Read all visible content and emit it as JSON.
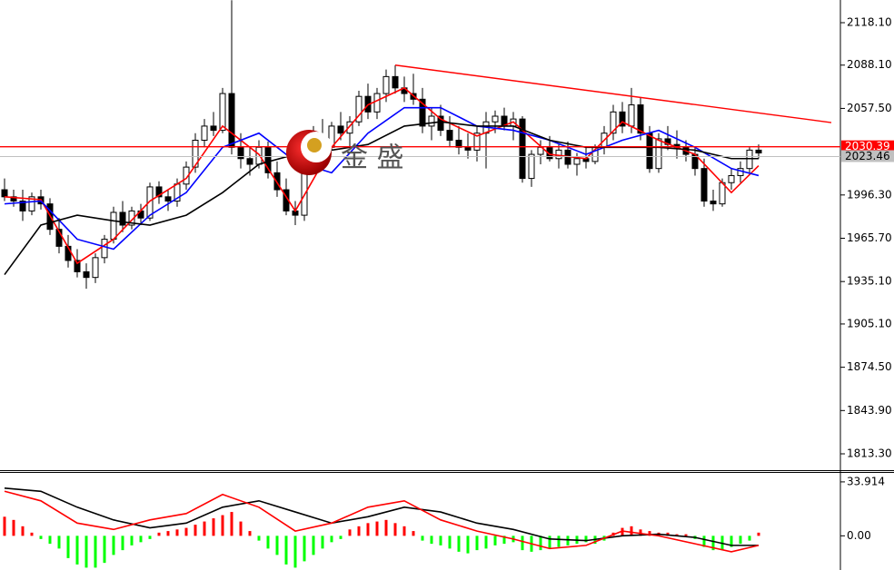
{
  "chart_data": [
    {
      "type": "candlestick",
      "open": [
        2000,
        1995,
        1992,
        1985,
        1995,
        1990,
        1972,
        1960,
        1950,
        1942,
        1938,
        1952,
        1965,
        1984,
        1975,
        1985,
        1980,
        2002,
        1995,
        1992,
        2004,
        2016,
        2035,
        2045,
        2042,
        2068,
        2030,
        2022,
        2018,
        2030,
        2012,
        2000,
        1985,
        1982,
        2030,
        2038,
        2030,
        2045,
        2040,
        2048,
        2066,
        2055,
        2068,
        2080,
        2072,
        2068,
        2064,
        2045,
        2052,
        2042,
        2035,
        2030,
        2028,
        2040,
        2048,
        2052,
        2045,
        2050,
        2008,
        2025,
        2030,
        2022,
        2028,
        2018,
        2022,
        2020,
        2030,
        2040,
        2055,
        2045,
        2060,
        2040,
        2015,
        2036,
        2032,
        2030,
        2025,
        2015,
        1992,
        1990,
        2005,
        2010,
        2015,
        2028
      ],
      "high": [
        2008,
        2000,
        2000,
        1998,
        2000,
        1994,
        1980,
        1968,
        1958,
        1948,
        1955,
        1968,
        1988,
        1992,
        1988,
        1990,
        2005,
        2006,
        2000,
        2008,
        2020,
        2040,
        2050,
        2055,
        2072,
        2134,
        2040,
        2030,
        2035,
        2034,
        2020,
        2008,
        1992,
        2035,
        2045,
        2050,
        2048,
        2055,
        2052,
        2070,
        2075,
        2072,
        2085,
        2088,
        2080,
        2082,
        2072,
        2058,
        2060,
        2052,
        2045,
        2040,
        2045,
        2055,
        2056,
        2058,
        2055,
        2052,
        2028,
        2035,
        2038,
        2032,
        2034,
        2026,
        2030,
        2032,
        2045,
        2060,
        2062,
        2072,
        2065,
        2045,
        2040,
        2045,
        2042,
        2035,
        2030,
        2022,
        2000,
        2008,
        2015,
        2020,
        2030,
        2032
      ],
      "low": [
        1992,
        1988,
        1978,
        1982,
        1986,
        1968,
        1955,
        1945,
        1938,
        1930,
        1934,
        1948,
        1962,
        1970,
        1972,
        1975,
        1978,
        1990,
        1985,
        1988,
        2000,
        2012,
        2030,
        2038,
        2040,
        2025,
        2015,
        2010,
        2015,
        2008,
        1995,
        1982,
        1975,
        1978,
        2020,
        2025,
        2028,
        2035,
        2030,
        2045,
        2050,
        2050,
        2062,
        2068,
        2062,
        2060,
        2040,
        2035,
        2038,
        2030,
        2025,
        2022,
        2020,
        2015,
        2040,
        2042,
        2035,
        2005,
        2002,
        2018,
        2020,
        2015,
        2015,
        2010,
        2015,
        2018,
        2025,
        2035,
        2040,
        2040,
        2035,
        2012,
        2012,
        2028,
        2022,
        2020,
        2010,
        1988,
        1985,
        1988,
        2000,
        2005,
        2012,
        2022
      ],
      "close": [
        1995,
        1992,
        1985,
        1995,
        1990,
        1972,
        1960,
        1950,
        1942,
        1938,
        1952,
        1965,
        1984,
        1975,
        1985,
        1980,
        2002,
        1995,
        1992,
        2004,
        2016,
        2035,
        2045,
        2042,
        2068,
        2030,
        2022,
        2018,
        2030,
        2012,
        2000,
        1985,
        1982,
        2030,
        2038,
        2030,
        2045,
        2040,
        2048,
        2066,
        2055,
        2068,
        2080,
        2072,
        2068,
        2064,
        2045,
        2052,
        2042,
        2035,
        2030,
        2028,
        2040,
        2048,
        2052,
        2045,
        2050,
        2008,
        2025,
        2030,
        2022,
        2028,
        2018,
        2022,
        2020,
        2030,
        2040,
        2055,
        2045,
        2060,
        2040,
        2015,
        2036,
        2032,
        2030,
        2025,
        2015,
        1992,
        1990,
        2005,
        2010,
        2015,
        2028,
        2026
      ],
      "overlays": [
        {
          "color": "#ff0000",
          "x": [
            0,
            4,
            8,
            12,
            16,
            20,
            24,
            28,
            32,
            36,
            40,
            44,
            48,
            52,
            56,
            60,
            64,
            68,
            72,
            76,
            80,
            83
          ],
          "values": [
            1995,
            1993,
            1948,
            1965,
            1992,
            2008,
            2045,
            2025,
            1985,
            2030,
            2060,
            2072,
            2050,
            2038,
            2048,
            2025,
            2022,
            2048,
            2035,
            2025,
            1998,
            2017
          ]
        },
        {
          "color": "#0000ff",
          "x": [
            0,
            4,
            8,
            12,
            16,
            20,
            24,
            28,
            32,
            36,
            40,
            44,
            48,
            52,
            56,
            60,
            64,
            68,
            72,
            76,
            80,
            83
          ],
          "values": [
            1990,
            1992,
            1965,
            1958,
            1982,
            1998,
            2030,
            2040,
            2020,
            2012,
            2040,
            2058,
            2058,
            2045,
            2042,
            2035,
            2025,
            2035,
            2042,
            2030,
            2015,
            2010
          ]
        },
        {
          "color": "#000000",
          "x": [
            0,
            4,
            8,
            12,
            16,
            20,
            24,
            28,
            32,
            36,
            40,
            44,
            48,
            52,
            56,
            60,
            64,
            68,
            72,
            76,
            80,
            83
          ],
          "values": [
            1940,
            1975,
            1982,
            1978,
            1975,
            1982,
            1998,
            2018,
            2025,
            2028,
            2032,
            2045,
            2048,
            2045,
            2045,
            2035,
            2030,
            2030,
            2030,
            2028,
            2022,
            2022
          ]
        }
      ],
      "price_lines": [
        {
          "value": 2030.39,
          "color": "#ff0000"
        },
        {
          "value": 2023.46,
          "color": "#c0c0c0"
        }
      ],
      "trendline": {
        "color": "#ff0000",
        "x": [
          43,
          91
        ],
        "values": [
          2088.1,
          2047.5
        ]
      },
      "watermark": "金 盛",
      "ylim": [
        1801.75,
        2134.14
      ],
      "yticks": [
        {
          "value": 2118.1,
          "label": "2118.10"
        },
        {
          "value": 2088.1,
          "label": "2088.10"
        },
        {
          "value": 2057.5,
          "label": "2057.50"
        },
        {
          "value": 1996.3,
          "label": "1996.30"
        },
        {
          "value": 1965.7,
          "label": "1965.70"
        },
        {
          "value": 1935.1,
          "label": "1935.10"
        },
        {
          "value": 1905.1,
          "label": "1905.10"
        },
        {
          "value": 1874.5,
          "label": "1874.50"
        },
        {
          "value": 1843.9,
          "label": "1843.90"
        },
        {
          "value": 1813.3,
          "label": "1813.30"
        }
      ]
    },
    {
      "type": "macd",
      "values": [
        12,
        10,
        6,
        2,
        -2,
        -5,
        -8,
        -14,
        -18,
        -20,
        -20,
        -17,
        -12,
        -9,
        -6,
        -4,
        -2,
        2,
        3,
        4,
        5,
        7,
        9,
        11,
        13,
        15,
        9,
        3,
        -3,
        -8,
        -12,
        -18,
        -20,
        -16,
        -12,
        -8,
        -4,
        -2,
        4,
        6,
        8,
        9,
        10,
        8,
        6,
        3,
        -3,
        -5,
        -6,
        -8,
        -10,
        -11,
        -9,
        -8,
        -6,
        -5,
        -4,
        -9,
        -10,
        -9,
        -8,
        -7,
        -6,
        -5,
        -4,
        -5,
        -3,
        2,
        5,
        6,
        4,
        3,
        2,
        2,
        1,
        1,
        -2,
        -7,
        -9,
        -9,
        -7,
        -5,
        -3,
        2
      ],
      "positive_color": "#ff0000",
      "negative_color": "#00ff00",
      "series": [
        {
          "color": "#000000",
          "x": [
            0,
            4,
            8,
            12,
            16,
            20,
            24,
            28,
            32,
            36,
            40,
            44,
            48,
            52,
            56,
            60,
            64,
            68,
            72,
            76,
            80,
            83
          ],
          "values": [
            30,
            28,
            18,
            10,
            5,
            8,
            18,
            22,
            15,
            8,
            12,
            18,
            15,
            8,
            4,
            -2,
            -3,
            0,
            1,
            -1,
            -6,
            -6
          ]
        },
        {
          "color": "#ff0000",
          "x": [
            0,
            4,
            8,
            12,
            16,
            20,
            24,
            28,
            32,
            36,
            40,
            44,
            48,
            52,
            56,
            60,
            64,
            68,
            72,
            76,
            80,
            83
          ],
          "values": [
            28,
            22,
            8,
            4,
            10,
            14,
            26,
            18,
            3,
            8,
            18,
            22,
            10,
            3,
            -2,
            -8,
            -6,
            3,
            0,
            -5,
            -10,
            -6
          ]
        }
      ],
      "ylim": [
        -21.48,
        39.57
      ],
      "yticks": [
        33.914,
        {
          "value": 0,
          "label": "0.00"
        }
      ]
    }
  ]
}
